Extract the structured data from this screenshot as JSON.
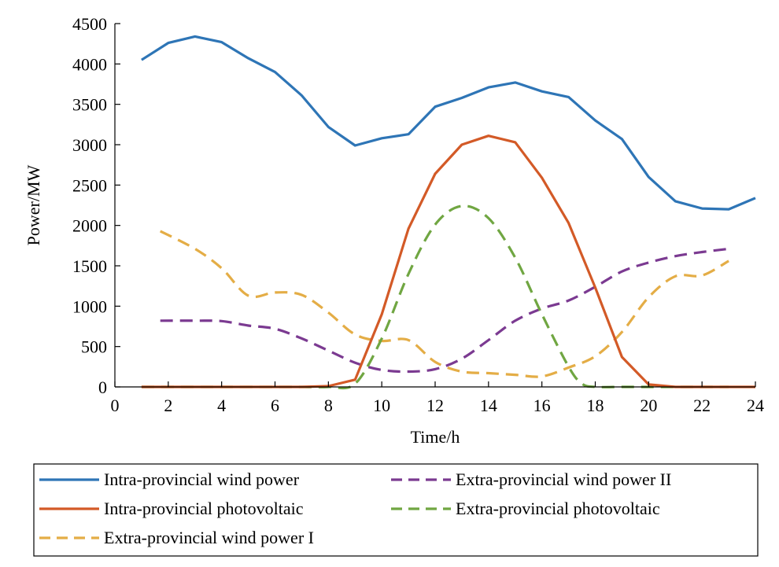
{
  "chart_data": {
    "type": "line",
    "title": "",
    "xlabel": "Time/h",
    "ylabel": "Power/MW",
    "xlim": [
      0,
      24
    ],
    "ylim": [
      0,
      4500
    ],
    "xticks": [
      0,
      2,
      4,
      6,
      8,
      10,
      12,
      14,
      16,
      18,
      20,
      22,
      24
    ],
    "yticks": [
      0,
      500,
      1000,
      1500,
      2000,
      2500,
      3000,
      3500,
      4000,
      4500
    ],
    "grid": false,
    "legend_position": "bottom",
    "series": [
      {
        "name": "Intra-provincial wind power",
        "color": "#2e75b6",
        "dash": "solid",
        "x": [
          1,
          2,
          3,
          4,
          5,
          6,
          7,
          8,
          9,
          10,
          11,
          12,
          13,
          14,
          15,
          16,
          17,
          18,
          19,
          20,
          21,
          22,
          23,
          24
        ],
        "y": [
          4050,
          4260,
          4340,
          4270,
          4070,
          3900,
          3610,
          3220,
          2990,
          3080,
          3130,
          3470,
          3580,
          3710,
          3770,
          3660,
          3590,
          3300,
          3070,
          2600,
          2300,
          2210,
          2200,
          2340
        ]
      },
      {
        "name": "Intra-provincial photovoltaic",
        "color": "#d35a27",
        "dash": "solid",
        "x": [
          1,
          2,
          3,
          4,
          5,
          6,
          7,
          8,
          9,
          10,
          11,
          12,
          13,
          14,
          15,
          16,
          17,
          18,
          19,
          20,
          21,
          22,
          23,
          24
        ],
        "y": [
          0,
          0,
          0,
          0,
          0,
          0,
          0,
          10,
          90,
          900,
          1960,
          2640,
          3000,
          3110,
          3030,
          2590,
          2030,
          1230,
          370,
          30,
          0,
          0,
          0,
          0
        ]
      },
      {
        "name": "Extra-provincial wind power I",
        "color": "#e4ad46",
        "dash": "dashed",
        "x": [
          1.7,
          3,
          4,
          5,
          6,
          7,
          8,
          9,
          10,
          11,
          12,
          13,
          14,
          15,
          16,
          17,
          18,
          19,
          20,
          21,
          22,
          23
        ],
        "y": [
          1930,
          1710,
          1470,
          1130,
          1170,
          1140,
          920,
          650,
          570,
          580,
          310,
          190,
          170,
          150,
          130,
          240,
          380,
          680,
          1110,
          1370,
          1380,
          1560
        ]
      },
      {
        "name": "Extra-provincial wind power II",
        "color": "#7b3a91",
        "dash": "dashed",
        "x": [
          1.7,
          3,
          4,
          5,
          6,
          7,
          8,
          9,
          10,
          11,
          12,
          13,
          14,
          15,
          16,
          17,
          18,
          19,
          20,
          21,
          22,
          23
        ],
        "y": [
          820,
          820,
          815,
          760,
          720,
          600,
          450,
          300,
          210,
          190,
          220,
          350,
          580,
          820,
          970,
          1070,
          1240,
          1430,
          1540,
          1620,
          1670,
          1710
        ]
      },
      {
        "name": "Extra-provincial photovoltaic",
        "color": "#70a642",
        "dash": "dashed",
        "x": [
          1,
          2,
          3,
          4,
          5,
          6,
          7,
          8,
          9,
          10,
          11,
          12,
          13,
          14,
          15,
          16,
          17,
          17.5,
          18,
          19,
          20,
          21,
          22,
          23
        ],
        "y": [
          0,
          0,
          0,
          0,
          0,
          0,
          0,
          0,
          40,
          600,
          1400,
          2010,
          2240,
          2090,
          1600,
          900,
          250,
          40,
          0,
          0,
          0,
          0,
          0,
          0
        ]
      }
    ]
  }
}
